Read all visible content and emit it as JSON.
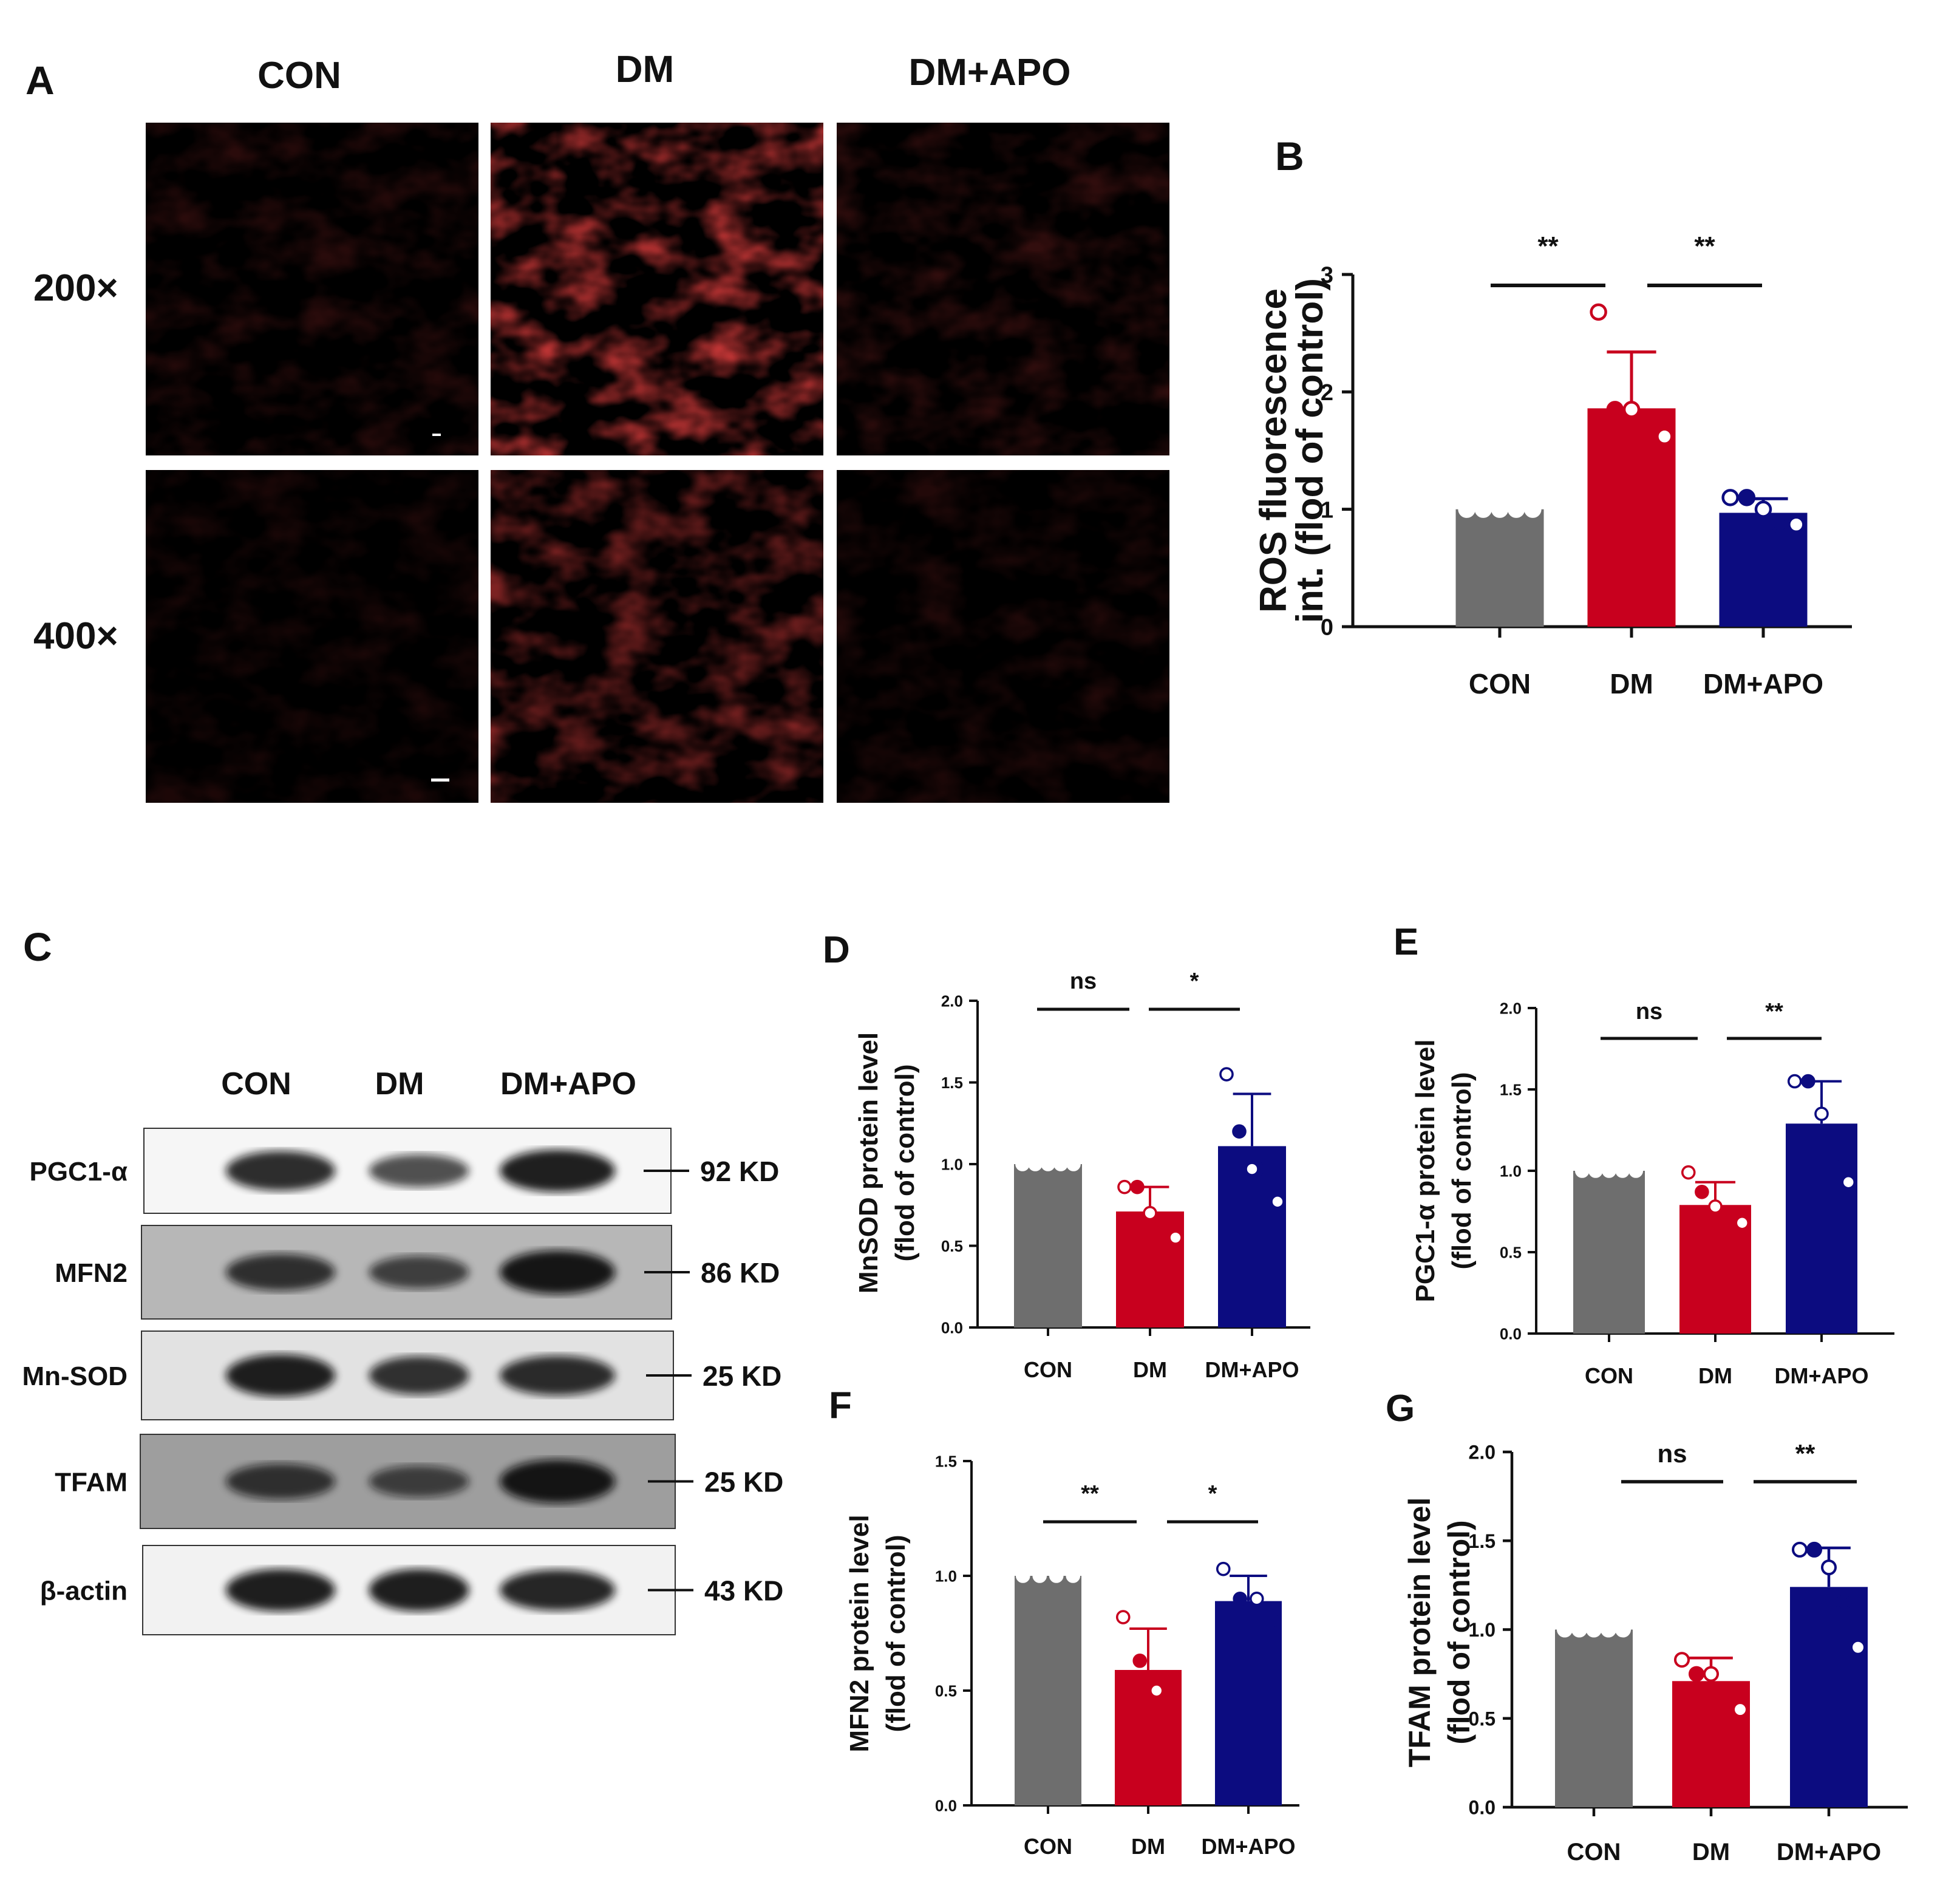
{
  "colors": {
    "con": "#6e6e6e",
    "dm": "#c8001e",
    "dmapo": "#0c0c80",
    "fluor": "#c41010"
  },
  "panel_a": {
    "label": "A",
    "columns": [
      "CON",
      "DM",
      "DM+APO"
    ],
    "rows": [
      "200×",
      "400×"
    ],
    "intensity": [
      [
        0.18,
        0.85,
        0.22
      ],
      [
        0.12,
        0.55,
        0.15
      ]
    ]
  },
  "panel_c": {
    "label": "C",
    "lanes": [
      "CON",
      "DM",
      "DM+APO"
    ],
    "blots": [
      {
        "protein": "PGC1-α",
        "size": "92 KD",
        "bands": [
          0.85,
          0.6,
          0.95
        ]
      },
      {
        "protein": "MFN2",
        "size": "86 KD",
        "bands": [
          0.75,
          0.6,
          1.0
        ]
      },
      {
        "protein": "Mn-SOD",
        "size": "25 KD",
        "bands": [
          0.95,
          0.8,
          0.85
        ]
      },
      {
        "protein": "TFAM",
        "size": "25 KD",
        "bands": [
          0.7,
          0.55,
          1.0
        ]
      },
      {
        "protein": "β-actin",
        "size": "43 KD",
        "bands": [
          0.95,
          0.95,
          0.9
        ]
      }
    ]
  },
  "chart_data": [
    {
      "label": "B",
      "type": "bar",
      "categories": [
        "CON",
        "DM",
        "DM+APO"
      ],
      "values": [
        1.0,
        1.86,
        0.97
      ],
      "errors": [
        0,
        0.48,
        0.12
      ],
      "points": [
        [
          1,
          1,
          1,
          1,
          1
        ],
        [
          2.68,
          1.85,
          1.85,
          1.62,
          1.62
        ],
        [
          1.1,
          1.1,
          1.0,
          0.87,
          0.87
        ]
      ],
      "ylabel": [
        "ROS fluorescence",
        "int. (flod of control)"
      ],
      "ylim": [
        0,
        3
      ],
      "yticks": [
        "0",
        "1",
        "2",
        "3"
      ],
      "sig": [
        "**",
        "**"
      ],
      "grid": false
    },
    {
      "label": "D",
      "type": "bar",
      "categories": [
        "CON",
        "DM",
        "DM+APO"
      ],
      "values": [
        1.0,
        0.71,
        1.11
      ],
      "errors": [
        0,
        0.15,
        0.32
      ],
      "points": [
        [
          1,
          1,
          1,
          1,
          1
        ],
        [
          0.86,
          0.86,
          0.7,
          0.65,
          0.55
        ],
        [
          1.55,
          1.2,
          0.97,
          0.97,
          0.77
        ]
      ],
      "ylabel": [
        "MnSOD protein level",
        "(flod of control)"
      ],
      "ylim": [
        0,
        2
      ],
      "yticks": [
        "0.0",
        "0.5",
        "1.0",
        "1.5",
        "2.0"
      ],
      "sig": [
        "ns",
        "*"
      ],
      "grid": false
    },
    {
      "label": "E",
      "type": "bar",
      "categories": [
        "CON",
        "DM",
        "DM+APO"
      ],
      "values": [
        1.0,
        0.79,
        1.29
      ],
      "errors": [
        0,
        0.14,
        0.26
      ],
      "points": [
        [
          1,
          1,
          1,
          1,
          1
        ],
        [
          0.99,
          0.87,
          0.78,
          0.68,
          0.68
        ],
        [
          1.55,
          1.55,
          1.35,
          1.1,
          0.93
        ]
      ],
      "ylabel": [
        "PGC1-α protein level",
        "(flod of control)"
      ],
      "ylim": [
        0,
        2
      ],
      "yticks": [
        "0.0",
        "0.5",
        "1.0",
        "1.5",
        "2.0"
      ],
      "sig": [
        "ns",
        "**"
      ],
      "grid": false
    },
    {
      "label": "F",
      "type": "bar",
      "categories": [
        "CON",
        "DM",
        "DM+APO"
      ],
      "values": [
        1.0,
        0.59,
        0.89
      ],
      "errors": [
        0,
        0.18,
        0.11
      ],
      "points": [
        [
          1,
          1,
          1,
          1
        ],
        [
          0.82,
          0.63,
          0.5,
          0.5
        ],
        [
          1.03,
          0.9,
          0.9,
          0.8
        ]
      ],
      "ylabel": [
        "MFN2 protein level",
        "(flod of control)"
      ],
      "ylim": [
        0,
        1.5
      ],
      "yticks": [
        "0.0",
        "0.5",
        "1.0",
        "1.5"
      ],
      "sig": [
        "**",
        "*"
      ],
      "grid": false
    },
    {
      "label": "G",
      "type": "bar",
      "categories": [
        "CON",
        "DM",
        "DM+APO"
      ],
      "values": [
        1.0,
        0.71,
        1.24
      ],
      "errors": [
        0,
        0.13,
        0.22
      ],
      "points": [
        [
          1,
          1,
          1,
          1,
          1
        ],
        [
          0.83,
          0.75,
          0.75,
          0.65,
          0.55
        ],
        [
          1.45,
          1.45,
          1.35,
          1.15,
          0.9
        ]
      ],
      "ylabel": [
        "TFAM protein level",
        "(flod of control)"
      ],
      "ylim": [
        0,
        2
      ],
      "yticks": [
        "0.0",
        "0.5",
        "1.0",
        "1.5",
        "2.0"
      ],
      "sig": [
        "ns",
        "**"
      ],
      "grid": false
    }
  ]
}
